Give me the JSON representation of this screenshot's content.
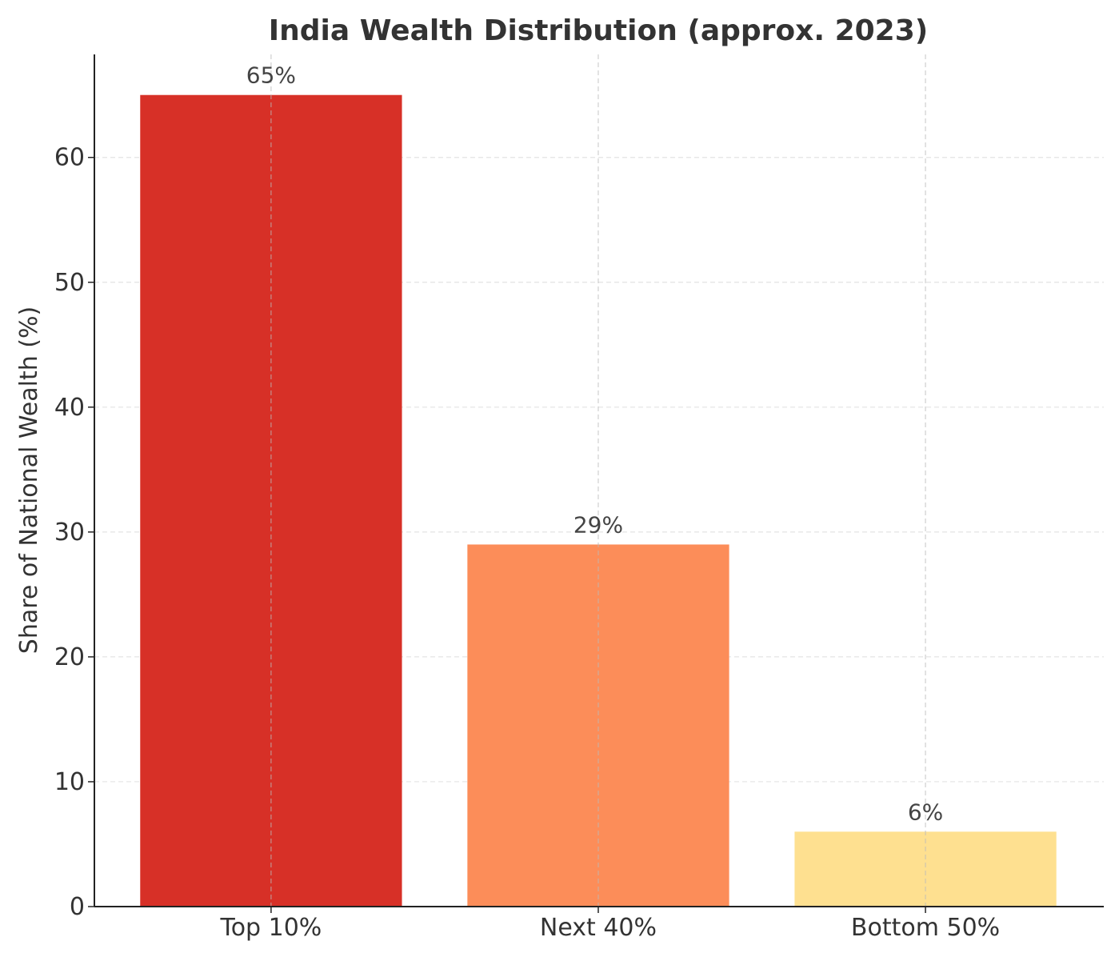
{
  "chart_data": {
    "type": "bar",
    "title": "India Wealth Distribution (approx. 2023)",
    "xlabel": "",
    "ylabel": "Share of National Wealth (%)",
    "categories": [
      "Top 10%",
      "Next 40%",
      "Bottom 50%"
    ],
    "values": [
      65,
      29,
      6
    ],
    "data_labels": [
      "65%",
      "29%",
      "6%"
    ],
    "colors": [
      "#d73027",
      "#fc8d59",
      "#fee090"
    ],
    "ylim": [
      0,
      68.25
    ],
    "yticks": [
      0,
      10,
      20,
      30,
      40,
      50,
      60
    ],
    "grid": true,
    "grid_style": "dashed"
  }
}
